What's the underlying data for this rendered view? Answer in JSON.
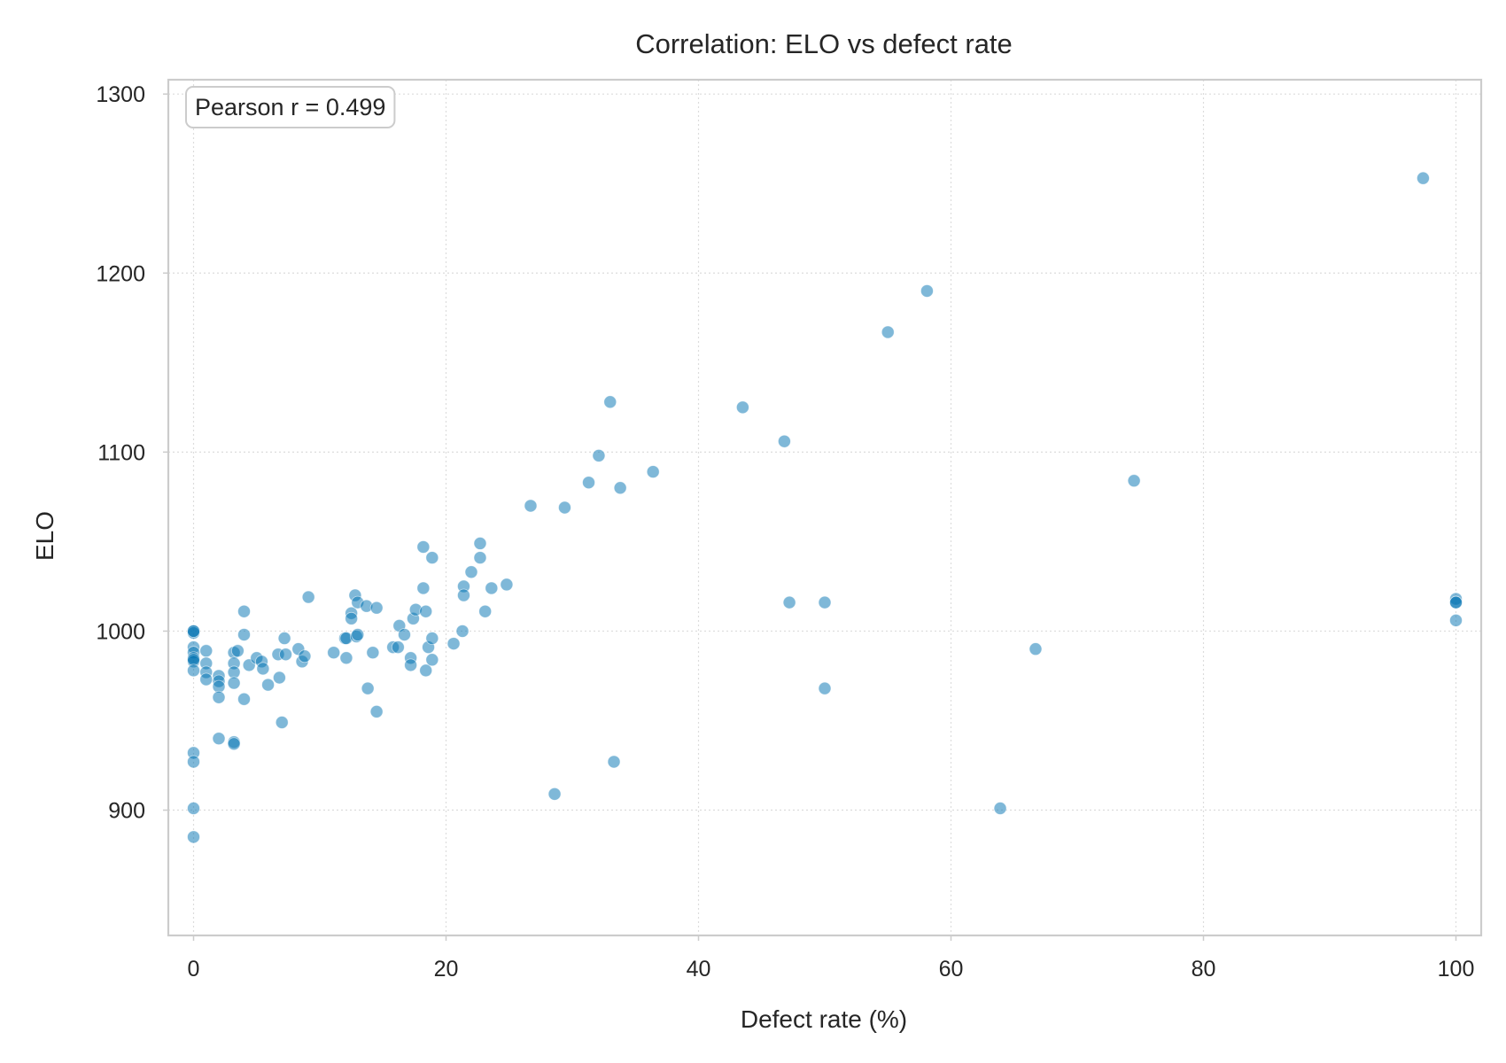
{
  "chart_data": {
    "type": "scatter",
    "title": "Correlation: ELO vs defect rate",
    "xlabel": "Defect rate (%)",
    "ylabel": "ELO",
    "xlim": [
      -2,
      102
    ],
    "ylim": [
      830,
      1308
    ],
    "xticks": [
      0,
      20,
      40,
      60,
      80,
      100
    ],
    "yticks": [
      900,
      1000,
      1100,
      1200,
      1300
    ],
    "grid": true,
    "annotation": "Pearson r = 0.499",
    "color": "#0072b2",
    "points": [
      [
        0,
        1000
      ],
      [
        0,
        999
      ],
      [
        0,
        1000
      ],
      [
        0,
        991
      ],
      [
        0,
        988
      ],
      [
        0,
        985
      ],
      [
        0,
        983
      ],
      [
        0,
        984
      ],
      [
        0,
        978
      ],
      [
        0,
        932
      ],
      [
        0,
        927
      ],
      [
        0,
        901
      ],
      [
        0,
        885
      ],
      [
        1,
        989
      ],
      [
        1,
        982
      ],
      [
        1,
        977
      ],
      [
        1,
        973
      ],
      [
        2,
        975
      ],
      [
        2,
        972
      ],
      [
        2,
        969
      ],
      [
        2,
        963
      ],
      [
        2,
        940
      ],
      [
        3.2,
        988
      ],
      [
        3.2,
        982
      ],
      [
        3.2,
        977
      ],
      [
        3.2,
        971
      ],
      [
        3.2,
        938
      ],
      [
        3.2,
        937
      ],
      [
        3.5,
        989
      ],
      [
        4,
        1011
      ],
      [
        4,
        998
      ],
      [
        4,
        962
      ],
      [
        4.4,
        981
      ],
      [
        5,
        985
      ],
      [
        5.4,
        983
      ],
      [
        5.5,
        979
      ],
      [
        5.9,
        970
      ],
      [
        6.7,
        987
      ],
      [
        6.8,
        974
      ],
      [
        7,
        949
      ],
      [
        7.2,
        996
      ],
      [
        7.3,
        987
      ],
      [
        8.3,
        990
      ],
      [
        8.6,
        983
      ],
      [
        8.8,
        986
      ],
      [
        9.1,
        1019
      ],
      [
        11.1,
        988
      ],
      [
        12,
        996
      ],
      [
        12.1,
        996
      ],
      [
        12.1,
        985
      ],
      [
        12.5,
        1010
      ],
      [
        12.5,
        1007
      ],
      [
        12.8,
        1020
      ],
      [
        12.9,
        997
      ],
      [
        13,
        1016
      ],
      [
        13,
        998
      ],
      [
        13.7,
        1014
      ],
      [
        13.8,
        968
      ],
      [
        14.2,
        988
      ],
      [
        14.5,
        1013
      ],
      [
        14.5,
        955
      ],
      [
        15.8,
        991
      ],
      [
        16.2,
        991
      ],
      [
        16.3,
        1003
      ],
      [
        16.7,
        998
      ],
      [
        17.2,
        985
      ],
      [
        17.2,
        981
      ],
      [
        17.4,
        1007
      ],
      [
        17.6,
        1012
      ],
      [
        18.2,
        1047
      ],
      [
        18.2,
        1024
      ],
      [
        18.4,
        1011
      ],
      [
        18.4,
        978
      ],
      [
        18.6,
        991
      ],
      [
        18.9,
        1041
      ],
      [
        18.9,
        996
      ],
      [
        18.9,
        984
      ],
      [
        20.6,
        993
      ],
      [
        21.3,
        1000
      ],
      [
        21.4,
        1025
      ],
      [
        21.4,
        1020
      ],
      [
        22,
        1033
      ],
      [
        22.7,
        1049
      ],
      [
        22.7,
        1041
      ],
      [
        23.1,
        1011
      ],
      [
        23.6,
        1024
      ],
      [
        24.8,
        1026
      ],
      [
        26.7,
        1070
      ],
      [
        28.6,
        909
      ],
      [
        29.4,
        1069
      ],
      [
        31.3,
        1083
      ],
      [
        32.1,
        1098
      ],
      [
        33,
        1128
      ],
      [
        33.3,
        927
      ],
      [
        33.8,
        1080
      ],
      [
        36.4,
        1089
      ],
      [
        43.5,
        1125
      ],
      [
        46.8,
        1106
      ],
      [
        47.2,
        1016
      ],
      [
        50,
        1016
      ],
      [
        50,
        968
      ],
      [
        55,
        1167
      ],
      [
        58.1,
        1190
      ],
      [
        63.9,
        901
      ],
      [
        66.7,
        990
      ],
      [
        74.5,
        1084
      ],
      [
        97.4,
        1253
      ],
      [
        100,
        1018
      ],
      [
        100,
        1016
      ],
      [
        100,
        1016
      ],
      [
        100,
        1006
      ]
    ]
  }
}
